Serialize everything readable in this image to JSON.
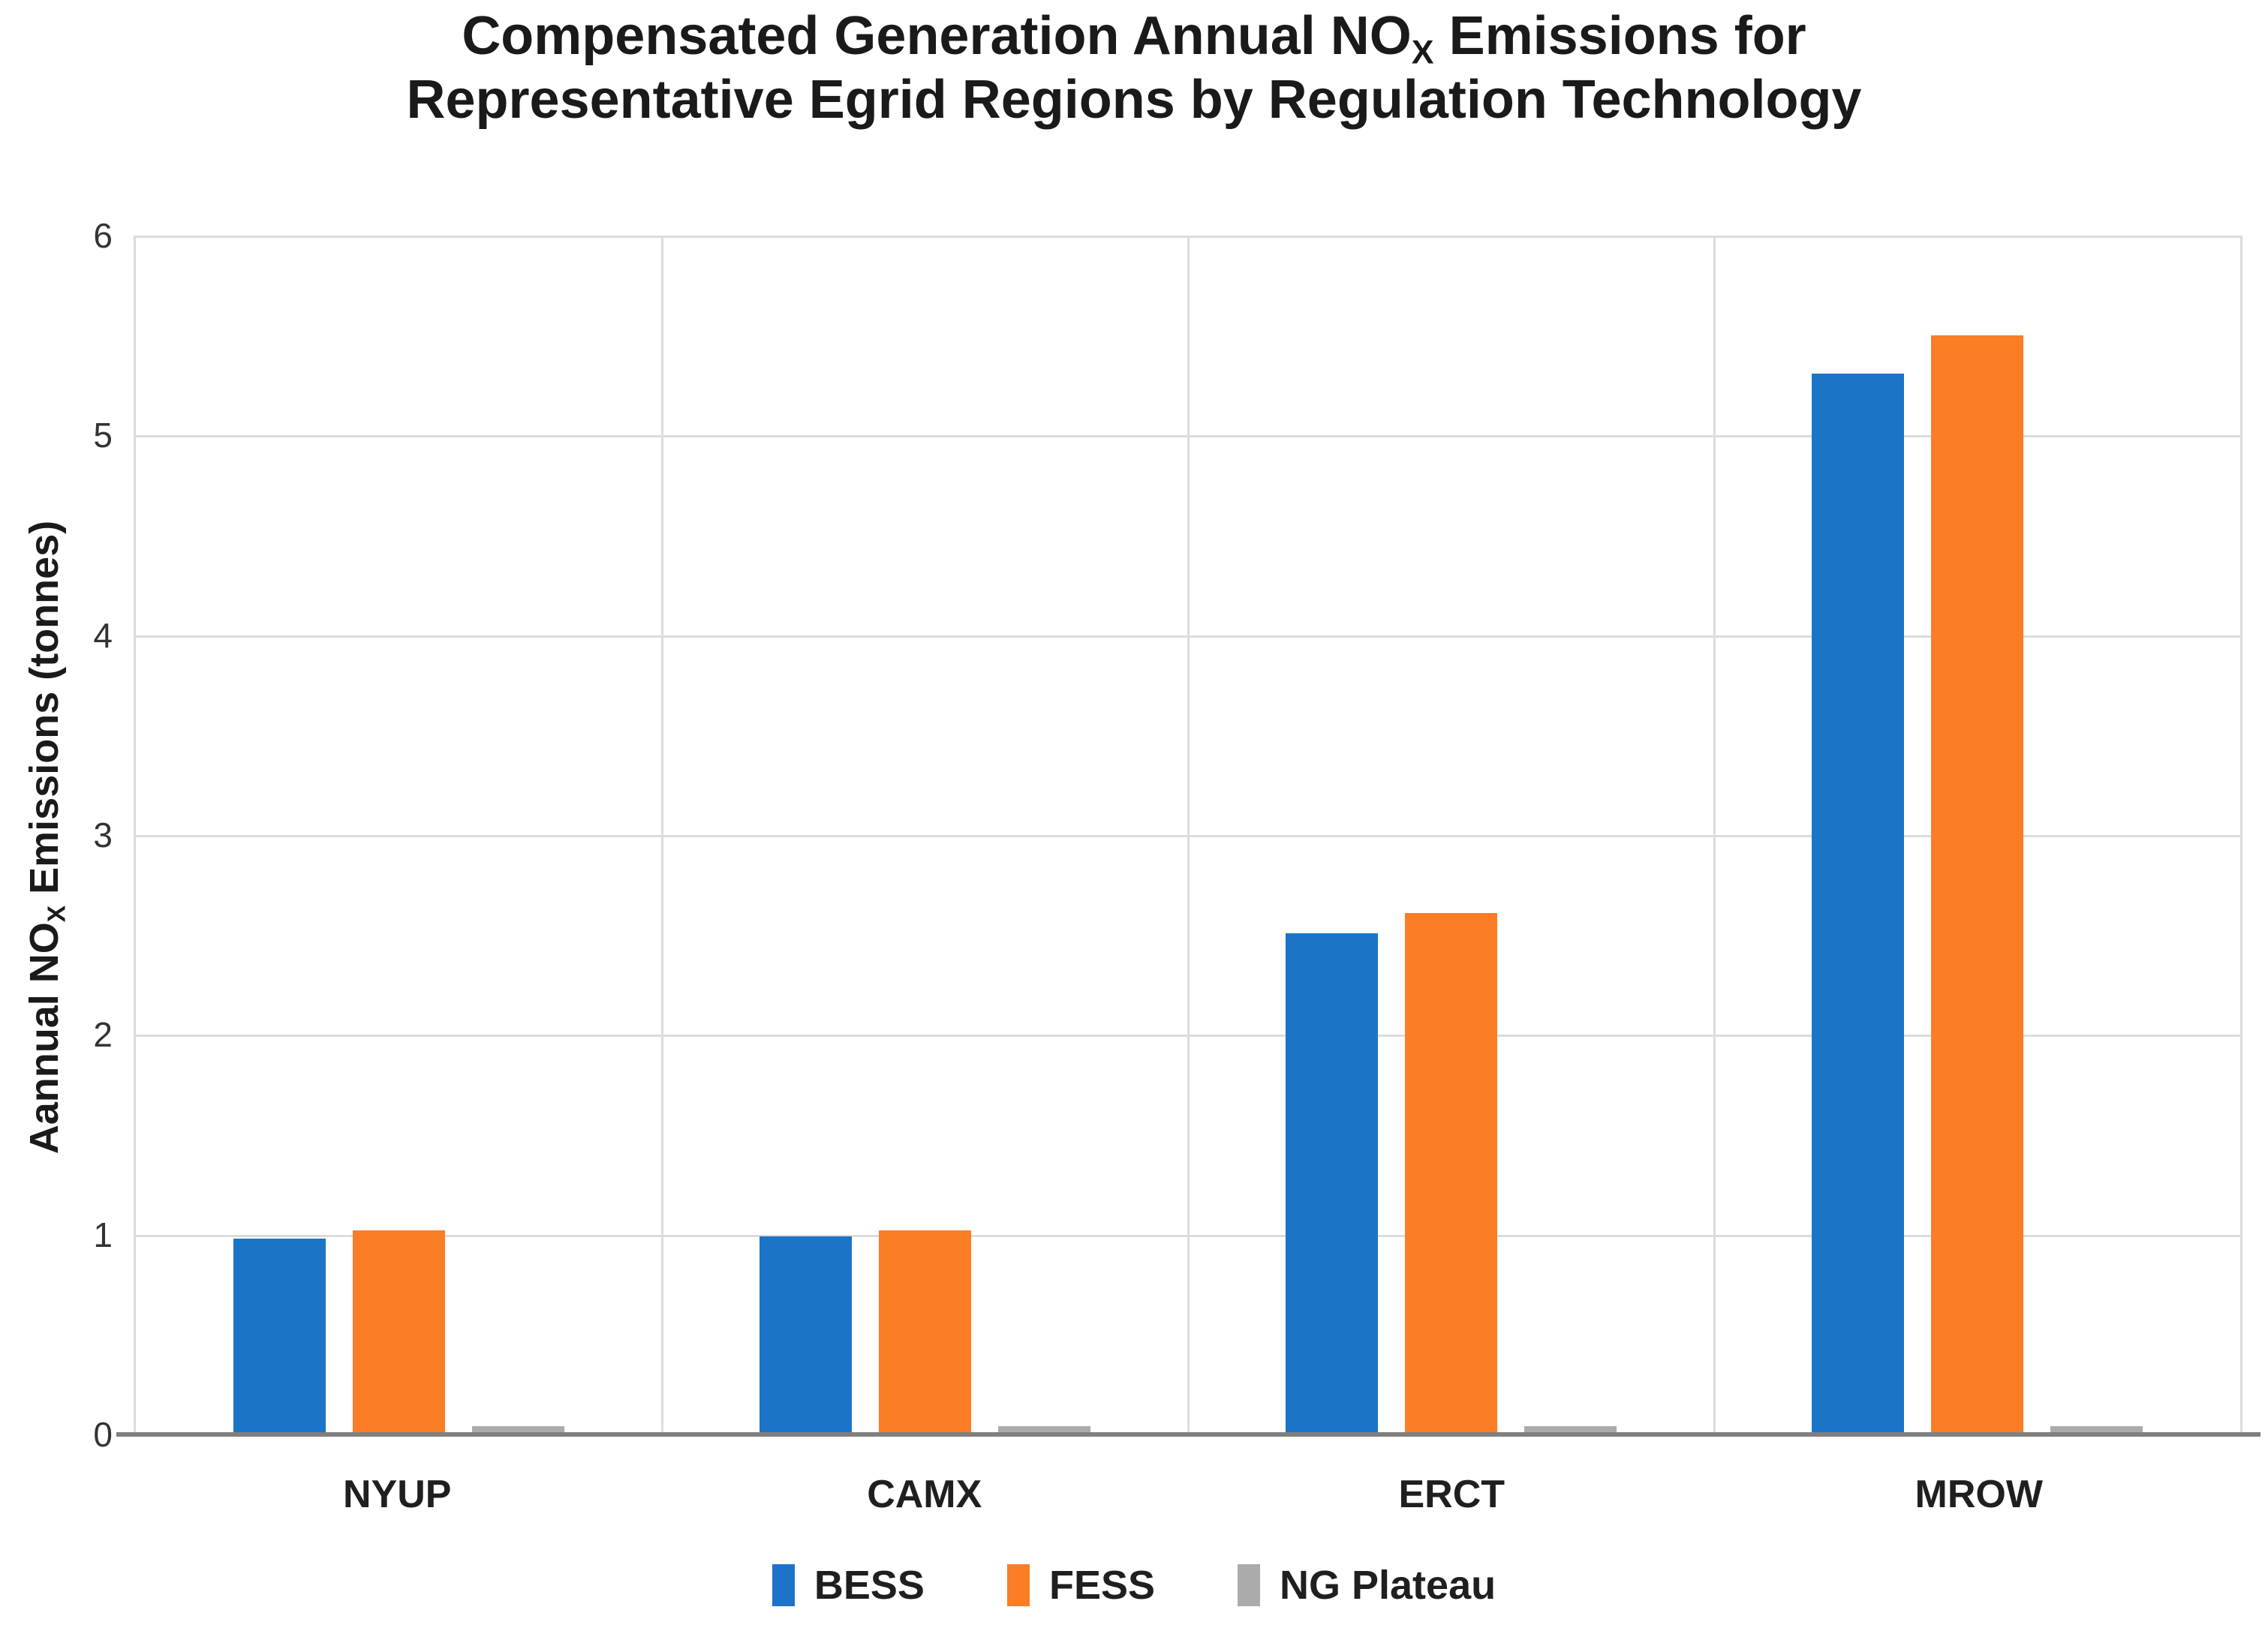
{
  "title": {
    "line1_pre": "Compensated Generation Annual NO",
    "line1_sub": "X",
    "line1_post": " Emissions for",
    "line2": "Representative Egrid Regions by Regulation Technology"
  },
  "y_axis": {
    "label_pre": "Aannual NO",
    "label_sub": "X",
    "label_post": " Emissions (tonnes)"
  },
  "chart_data": {
    "type": "bar",
    "title": "Compensated Generation Annual NOX Emissions for Representative Egrid Regions by Regulation Technology",
    "xlabel": "",
    "ylabel": "Aannual NOX Emissions (tonnes)",
    "categories": [
      "NYUP",
      "CAMX",
      "ERCT",
      "MROW"
    ],
    "series": [
      {
        "name": "BESS",
        "color": "#1b74c8",
        "values": [
          0.98,
          0.99,
          2.51,
          5.31
        ]
      },
      {
        "name": "FESS",
        "color": "#fb7d26",
        "values": [
          1.02,
          1.02,
          2.61,
          5.5
        ]
      },
      {
        "name": "NG Plateau",
        "color": "#ababab",
        "values": [
          0.04,
          0.04,
          0.04,
          0.04
        ]
      }
    ],
    "ylim": [
      0,
      6
    ],
    "y_ticks": [
      0,
      1,
      2,
      3,
      4,
      5,
      6
    ],
    "grid": true,
    "legend_position": "bottom"
  },
  "colors": {
    "gridline": "#dcdcdc",
    "axis_line": "#7f7f7f",
    "text": "#1f1f1f",
    "background": "#ffffff"
  }
}
